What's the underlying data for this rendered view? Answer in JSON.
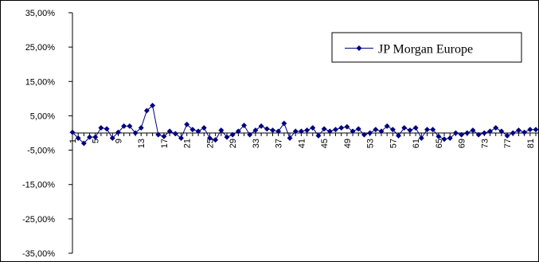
{
  "chart_data": {
    "type": "line",
    "title": "",
    "xlabel": "",
    "ylabel": "",
    "ylim": [
      -0.35,
      0.35
    ],
    "y_ticks": [
      0.35,
      0.25,
      0.15,
      0.05,
      -0.05,
      -0.15,
      -0.25,
      -0.35
    ],
    "y_tick_labels": [
      "35,00%",
      "25,00%",
      "15,00%",
      "5,00%",
      "-5,00%",
      "-15,00%",
      "-25,00%",
      "-35,00%"
    ],
    "x_tick_labels": [
      "1",
      "5",
      "9",
      "13",
      "17",
      "21",
      "25",
      "29",
      "33",
      "37",
      "41",
      "45",
      "49",
      "53",
      "57",
      "61",
      "65",
      "69",
      "73",
      "77",
      "81"
    ],
    "x_range": [
      1,
      82
    ],
    "grid": false,
    "legend_position": "top-right",
    "colors": {
      "series": "#000080",
      "axis": "#000000",
      "border": "#000000",
      "background": "#ffffff"
    },
    "series": [
      {
        "name": "JP Morgan Europe",
        "x": [
          1,
          2,
          3,
          4,
          5,
          6,
          7,
          8,
          9,
          10,
          11,
          12,
          13,
          14,
          15,
          16,
          17,
          18,
          19,
          20,
          21,
          22,
          23,
          24,
          25,
          26,
          27,
          28,
          29,
          30,
          31,
          32,
          33,
          34,
          35,
          36,
          37,
          38,
          39,
          40,
          41,
          42,
          43,
          44,
          45,
          46,
          47,
          48,
          49,
          50,
          51,
          52,
          53,
          54,
          55,
          56,
          57,
          58,
          59,
          60,
          61,
          62,
          63,
          64,
          65,
          66,
          67,
          68,
          69,
          70,
          71,
          72,
          73,
          74,
          75,
          76,
          77,
          78,
          79,
          80,
          81,
          82
        ],
        "values": [
          0.002,
          -0.015,
          -0.03,
          -0.012,
          -0.012,
          0.015,
          0.012,
          -0.015,
          0.002,
          0.02,
          0.02,
          0.0,
          0.015,
          0.065,
          0.08,
          -0.005,
          -0.01,
          0.005,
          -0.002,
          -0.015,
          0.025,
          0.01,
          0.005,
          0.015,
          -0.015,
          -0.02,
          0.008,
          -0.012,
          -0.005,
          0.005,
          0.022,
          -0.005,
          0.008,
          0.02,
          0.012,
          0.008,
          0.005,
          0.028,
          -0.015,
          0.005,
          0.005,
          0.008,
          0.015,
          -0.008,
          0.012,
          0.005,
          0.01,
          0.015,
          0.018,
          0.005,
          0.012,
          -0.005,
          0.0,
          0.01,
          0.005,
          0.02,
          0.01,
          -0.008,
          0.015,
          0.008,
          0.015,
          -0.015,
          0.01,
          0.01,
          -0.01,
          -0.018,
          -0.015,
          0.0,
          -0.005,
          0.0,
          0.008,
          -0.005,
          0.0,
          0.005,
          0.015,
          0.005,
          -0.008,
          0.0,
          0.008,
          0.002,
          0.01,
          0.01
        ]
      }
    ]
  }
}
